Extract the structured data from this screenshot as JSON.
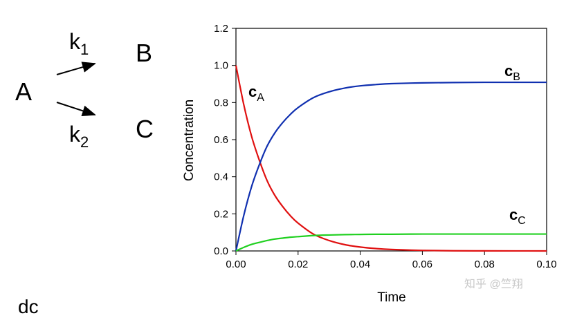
{
  "scheme": {
    "reactant": "A",
    "product1": "B",
    "product2": "C",
    "k1_base": "k",
    "k1_sub": "1",
    "k2_base": "k",
    "k2_sub": "2"
  },
  "partial_text": "dc",
  "watermark": "知乎 @竺翔",
  "chart_data": {
    "type": "line",
    "xlabel": "Time",
    "ylabel": "Concentration",
    "xlim": [
      0,
      0.1
    ],
    "ylim": [
      0,
      1.2
    ],
    "xticks": [
      0.0,
      0.02,
      0.04,
      0.06,
      0.08,
      0.1
    ],
    "xtick_labels": [
      "0.00",
      "0.02",
      "0.04",
      "0.06",
      "0.08",
      "0.10"
    ],
    "yticks": [
      0.0,
      0.2,
      0.4,
      0.6,
      0.8,
      1.0,
      1.2
    ],
    "ytick_labels": [
      "0.0",
      "0.2",
      "0.4",
      "0.6",
      "0.8",
      "1.0",
      "1.2"
    ],
    "grid": false,
    "series": [
      {
        "name": "cA",
        "label_base": "c",
        "label_sub": "A",
        "color": "#e01010",
        "x": [
          0,
          0.0025,
          0.005,
          0.0075,
          0.01,
          0.0125,
          0.015,
          0.0175,
          0.02,
          0.025,
          0.03,
          0.035,
          0.04,
          0.045,
          0.05,
          0.06,
          0.07,
          0.08,
          0.09,
          0.1
        ],
        "values": [
          1.0,
          0.79,
          0.62,
          0.49,
          0.38,
          0.3,
          0.24,
          0.19,
          0.15,
          0.09,
          0.056,
          0.034,
          0.021,
          0.013,
          0.008,
          0.003,
          0.001,
          0.0005,
          0.0002,
          0.0001
        ]
      },
      {
        "name": "cB",
        "label_base": "c",
        "label_sub": "B",
        "color": "#1030b0",
        "x": [
          0,
          0.0025,
          0.005,
          0.0075,
          0.01,
          0.0125,
          0.015,
          0.0175,
          0.02,
          0.025,
          0.03,
          0.035,
          0.04,
          0.045,
          0.05,
          0.06,
          0.07,
          0.08,
          0.09,
          0.1
        ],
        "values": [
          0.0,
          0.19,
          0.345,
          0.464,
          0.564,
          0.636,
          0.691,
          0.736,
          0.773,
          0.827,
          0.858,
          0.878,
          0.89,
          0.897,
          0.902,
          0.906,
          0.908,
          0.909,
          0.909,
          0.909
        ]
      },
      {
        "name": "cC",
        "label_base": "c",
        "label_sub": "C",
        "color": "#20d020",
        "x": [
          0,
          0.0025,
          0.005,
          0.0075,
          0.01,
          0.0125,
          0.015,
          0.0175,
          0.02,
          0.025,
          0.03,
          0.035,
          0.04,
          0.045,
          0.05,
          0.06,
          0.07,
          0.08,
          0.09,
          0.1
        ],
        "values": [
          0.0,
          0.019,
          0.035,
          0.046,
          0.056,
          0.064,
          0.069,
          0.074,
          0.077,
          0.083,
          0.086,
          0.088,
          0.089,
          0.09,
          0.09,
          0.091,
          0.091,
          0.091,
          0.091,
          0.091
        ]
      }
    ]
  }
}
